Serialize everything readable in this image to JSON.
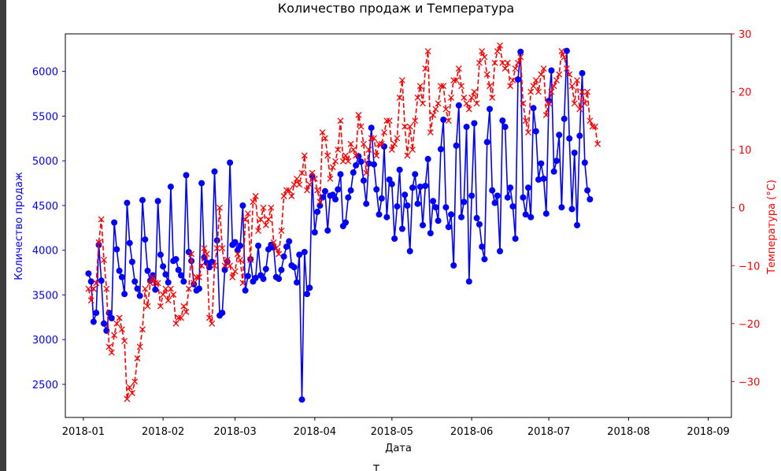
{
  "bottom_text": "Т",
  "chart_data": {
    "type": "line",
    "title": "Количество продаж и Температура",
    "xlabel": "Дата",
    "ylabel_left": "Количество продаж",
    "ylabel_right": "Температура (°C)",
    "x_ticks": [
      "2018-01",
      "2018-02",
      "2018-03",
      "2018-04",
      "2018-05",
      "2018-06",
      "2018-07",
      "2018-08",
      "2018-09"
    ],
    "y_left_ticks": [
      2500,
      3000,
      3500,
      4000,
      4500,
      5000,
      5500,
      6000
    ],
    "y_right_ticks": [
      -30,
      -20,
      -10,
      0,
      10,
      20,
      30
    ],
    "x_range": [
      "2017-12-25",
      "2018-09-10"
    ],
    "y_left_range": [
      2130,
      6420
    ],
    "y_right_range": [
      -36.2,
      30
    ],
    "start_date": "2018-01-03",
    "grid": false,
    "colors": {
      "sales": "#0000ff",
      "temperature": "#ff0000",
      "left_axis": "#0000ff",
      "right_axis": "#ff0000"
    },
    "series": [
      {
        "name": "Количество продаж",
        "axis": "left",
        "style": "solid line with circle markers",
        "values": [
          3740,
          3650,
          3200,
          3300,
          4060,
          3660,
          3180,
          3100,
          3300,
          3240,
          4310,
          4010,
          3770,
          3700,
          3510,
          4530,
          4080,
          3870,
          3650,
          3570,
          3490,
          4560,
          4120,
          3770,
          3660,
          3720,
          3560,
          4550,
          3950,
          3820,
          3730,
          3640,
          4710,
          3880,
          3900,
          3780,
          3720,
          3650,
          4840,
          3980,
          3880,
          3620,
          3550,
          3570,
          4750,
          3920,
          3860,
          3810,
          3870,
          4880,
          4110,
          3270,
          3300,
          3780,
          3870,
          4980,
          4060,
          4090,
          4000,
          4050,
          4500,
          3550,
          3710,
          3900,
          3650,
          3690,
          4050,
          3720,
          3680,
          3790,
          4010,
          4060,
          4030,
          3700,
          3680,
          3780,
          3930,
          4040,
          4100,
          3830,
          3810,
          3640,
          3950,
          2330,
          3980,
          3510,
          3580,
          4830,
          4200,
          4430,
          4500,
          4590,
          4660,
          4220,
          4610,
          4620,
          4570,
          4680,
          4850,
          4270,
          4310,
          4590,
          4670,
          4870,
          4950,
          5050,
          4990,
          4780,
          4520,
          4970,
          5370,
          4960,
          4680,
          4400,
          4580,
          5160,
          4370,
          4790,
          4740,
          4130,
          4490,
          4900,
          4240,
          4620,
          4500,
          3990,
          4700,
          4850,
          4520,
          4710,
          4280,
          4720,
          5020,
          4190,
          4550,
          4480,
          4330,
          5130,
          5460,
          4480,
          4260,
          4400,
          3830,
          5170,
          5620,
          4370,
          4540,
          5380,
          3650,
          4610,
          5420,
          4360,
          4290,
          4040,
          3900,
          5210,
          5580,
          4670,
          4530,
          4610,
          3990,
          5450,
          5380,
          4590,
          4700,
          4490,
          4130,
          5910,
          6220,
          4590,
          4400,
          4700,
          4370,
          5590,
          5330,
          4790,
          4970,
          4800,
          4410,
          5670,
          6010,
          4880,
          5000,
          5290,
          4480,
          5470,
          6230,
          5250,
          4460,
          5090,
          4280,
          5280,
          5980,
          4980,
          4670,
          4570
        ]
      },
      {
        "name": "Температура (°C)",
        "axis": "right",
        "style": "dashed line with x markers",
        "values": [
          -14,
          -16,
          -14,
          -13,
          -6,
          -2,
          -9,
          -14,
          -24,
          -25,
          -22,
          -20,
          -19,
          -21,
          -23,
          -33,
          -31,
          -32,
          -30,
          -26,
          -24,
          -21,
          -14,
          -17,
          -13,
          -12,
          -13,
          -13,
          -17,
          -15,
          -14,
          -16,
          -14,
          -15,
          -20,
          -19,
          -19,
          -17,
          -18,
          -14,
          -8,
          -13,
          -12,
          -12,
          -10,
          -7,
          -8,
          -19,
          -20,
          -10,
          -7,
          0,
          -7,
          -10,
          -9,
          -10,
          -12,
          -11,
          -8,
          -9,
          -13,
          -2,
          -1,
          -9,
          1,
          2,
          -4,
          -2,
          0,
          -3,
          -2,
          0,
          -6,
          -7,
          -8,
          -4,
          2,
          3,
          3,
          2,
          4,
          5,
          4,
          6,
          9,
          3,
          4,
          6,
          5,
          3,
          1,
          13,
          12,
          9,
          5,
          7,
          8,
          10,
          15,
          8,
          9,
          8,
          11,
          10,
          9,
          16,
          14,
          11,
          6,
          10,
          12,
          12,
          9,
          11,
          11,
          13,
          15,
          15,
          10,
          11,
          12,
          19,
          22,
          14,
          9,
          14,
          10,
          15,
          19,
          21,
          18,
          24,
          27,
          13,
          16,
          17,
          18,
          21,
          21,
          17,
          15,
          19,
          22,
          22,
          24,
          21,
          19,
          18,
          17,
          19,
          20,
          18,
          25,
          27,
          26,
          23,
          21,
          19,
          25,
          27,
          28,
          25,
          24,
          25,
          21,
          22,
          24,
          25,
          26,
          18,
          15,
          13,
          20,
          21,
          22,
          20,
          23,
          24,
          16,
          18,
          20,
          21,
          22,
          23,
          27,
          26,
          24,
          23,
          21,
          18,
          22,
          17,
          20,
          18,
          20,
          15,
          14,
          14,
          11
        ]
      }
    ]
  }
}
